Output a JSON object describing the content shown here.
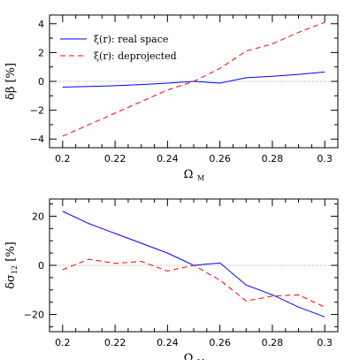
{
  "chart_data": [
    {
      "type": "line",
      "title": "",
      "xlabel": "Ω",
      "xlabel_sub": "M",
      "ylabel": "δβ [%]",
      "xlim": [
        0.195,
        0.305
      ],
      "ylim": [
        -4.6,
        4.6
      ],
      "xticks": [
        0.2,
        0.22,
        0.24,
        0.26,
        0.28,
        0.3
      ],
      "xtick_labels": [
        "0.2",
        "0.22",
        "0.24",
        "0.26",
        "0.28",
        "0.3"
      ],
      "yticks": [
        -4,
        -2,
        0,
        2,
        4
      ],
      "ytick_labels": [
        "−4",
        "−2",
        "0",
        "2",
        "4"
      ],
      "zero_line": true,
      "legend_position": "top-left",
      "x": [
        0.2,
        0.21,
        0.22,
        0.23,
        0.24,
        0.25,
        0.26,
        0.27,
        0.28,
        0.29,
        0.3
      ],
      "series": [
        {
          "name": "ξ(r): real space",
          "color": "#0000ff",
          "dash": "solid",
          "values": [
            -0.4,
            -0.35,
            -0.3,
            -0.22,
            -0.12,
            0.0,
            -0.12,
            0.25,
            0.35,
            0.48,
            0.65
          ]
        },
        {
          "name": "ξ(r): deprojected",
          "color": "#ff0000",
          "dash": "dashed",
          "values": [
            -3.8,
            -3.0,
            -2.2,
            -1.4,
            -0.6,
            0.0,
            0.9,
            2.1,
            2.6,
            3.4,
            4.1
          ]
        }
      ]
    },
    {
      "type": "line",
      "title": "",
      "xlabel": "Ω",
      "xlabel_sub": "M",
      "ylabel": "δσ",
      "ylabel_sub": "12",
      "ylabel_suffix": " [%]",
      "xlim": [
        0.195,
        0.305
      ],
      "ylim": [
        -27,
        27
      ],
      "xticks": [
        0.2,
        0.22,
        0.24,
        0.26,
        0.28,
        0.3
      ],
      "xtick_labels": [
        "0.2",
        "0.22",
        "0.24",
        "0.26",
        "0.28",
        "0.3"
      ],
      "yticks": [
        -20,
        0,
        20
      ],
      "ytick_labels": [
        "−20",
        "0",
        "20"
      ],
      "zero_line": true,
      "x": [
        0.2,
        0.21,
        0.22,
        0.23,
        0.24,
        0.25,
        0.26,
        0.27,
        0.28,
        0.29,
        0.3
      ],
      "series": [
        {
          "name": "ξ(r): real space",
          "color": "#0000ff",
          "dash": "solid",
          "values": [
            22.0,
            17.0,
            13.0,
            9.0,
            5.0,
            0.0,
            1.0,
            -8.0,
            -12.0,
            -17.0,
            -21.0
          ]
        },
        {
          "name": "ξ(r): deprojected",
          "color": "#ff0000",
          "dash": "dashed",
          "values": [
            -1.8,
            2.5,
            0.8,
            1.6,
            -2.3,
            0.0,
            -6.0,
            -14.5,
            -12.5,
            -12.0,
            -17.0
          ]
        }
      ]
    }
  ]
}
